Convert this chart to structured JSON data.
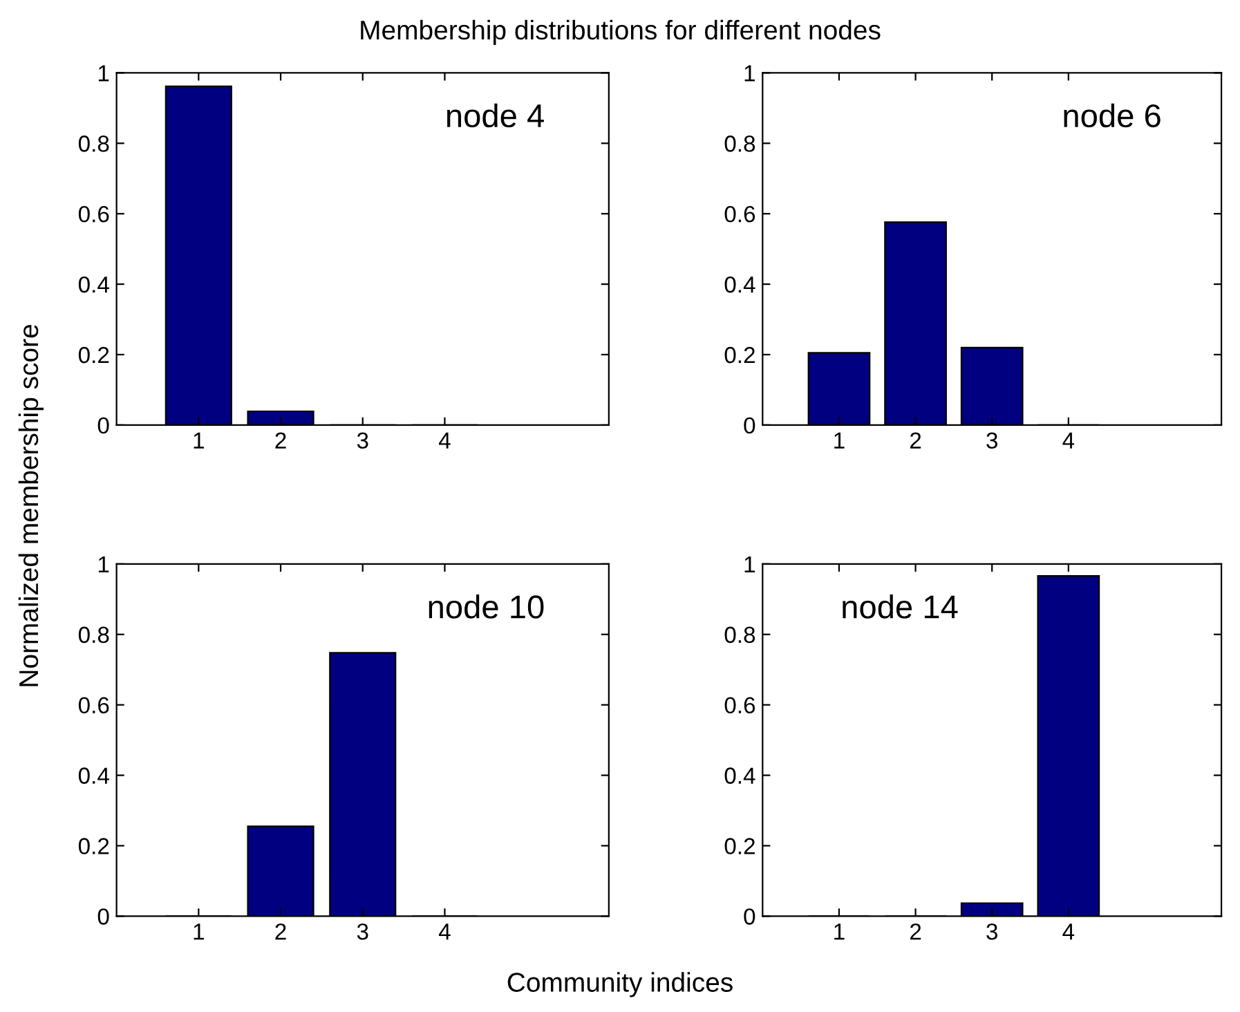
{
  "chart_data": [
    {
      "type": "bar",
      "title": "Membership distributions for different nodes",
      "xlabel": "Community indices",
      "ylabel": "Normalized membership score",
      "x": [
        1,
        2,
        3,
        4
      ],
      "values": [
        0.962,
        0.039,
        0,
        0
      ],
      "color": "#000080",
      "xlim": [
        0,
        6
      ],
      "xticks": [
        1,
        2,
        3,
        4
      ],
      "ylim": [
        0,
        1
      ],
      "yticks": [
        0,
        0.2,
        0.4,
        0.6,
        0.8,
        1
      ],
      "annotations": [
        "node 4"
      ]
    },
    {
      "type": "bar",
      "x": [
        1,
        2,
        3,
        4
      ],
      "values": [
        0.205,
        0.576,
        0.22,
        0
      ],
      "color": "#000080",
      "xlim": [
        0,
        6
      ],
      "xticks": [
        1,
        2,
        3,
        4
      ],
      "ylim": [
        0,
        1
      ],
      "yticks": [
        0,
        0.2,
        0.4,
        0.6,
        0.8,
        1
      ],
      "annotations": [
        "node 6"
      ]
    },
    {
      "type": "bar",
      "x": [
        1,
        2,
        3,
        4
      ],
      "values": [
        0,
        0.255,
        0.748,
        0
      ],
      "color": "#000080",
      "xlim": [
        0,
        6
      ],
      "xticks": [
        1,
        2,
        3,
        4
      ],
      "ylim": [
        0,
        1
      ],
      "yticks": [
        0,
        0.2,
        0.4,
        0.6,
        0.8,
        1
      ],
      "annotations": [
        "node 10"
      ]
    },
    {
      "type": "bar",
      "x": [
        1,
        2,
        3,
        4
      ],
      "values": [
        0,
        0,
        0.037,
        0.966
      ],
      "color": "#000080",
      "xlim": [
        0,
        6
      ],
      "xticks": [
        1,
        2,
        3,
        4
      ],
      "ylim": [
        0,
        1
      ],
      "yticks": [
        0,
        0.2,
        0.4,
        0.6,
        0.8,
        1
      ],
      "annotations": [
        "node 14"
      ]
    }
  ]
}
